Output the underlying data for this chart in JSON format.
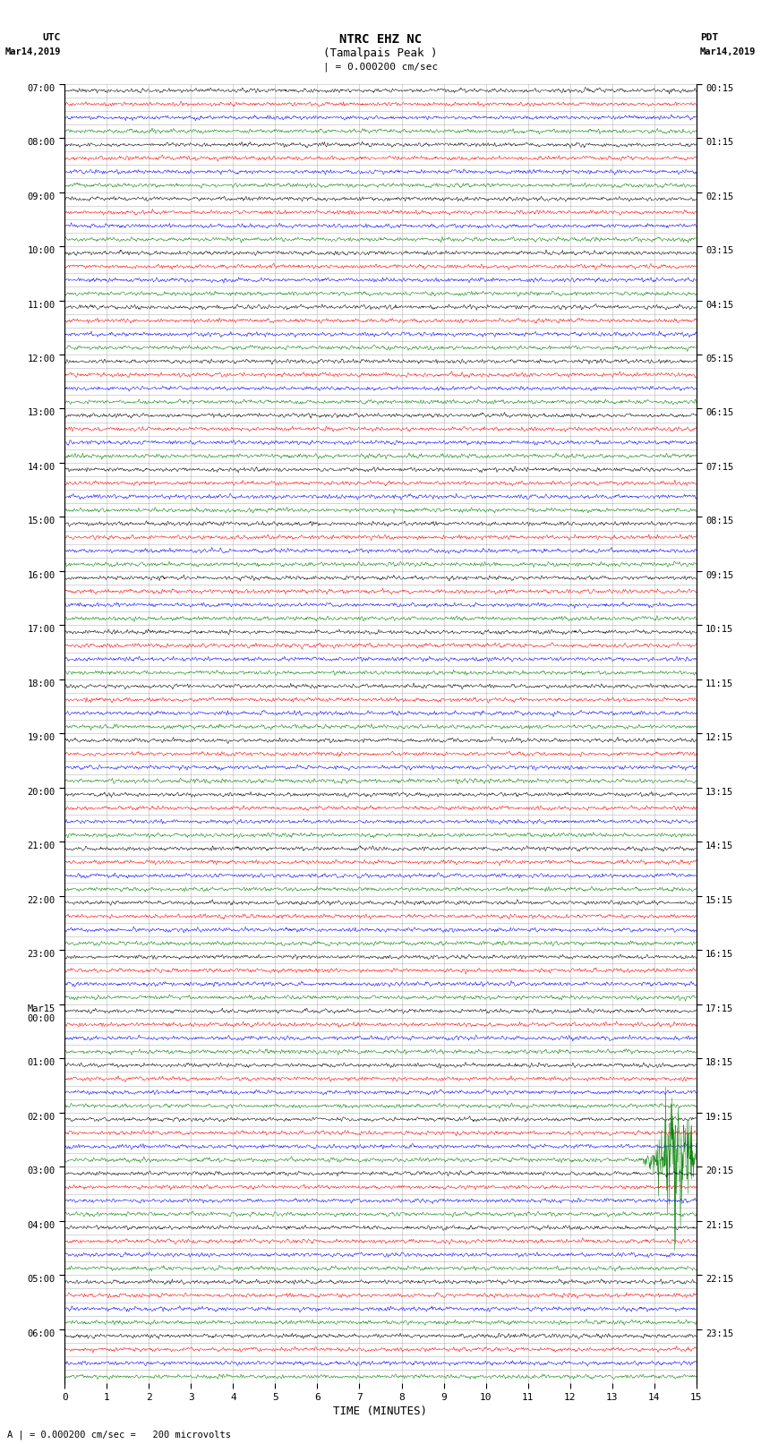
{
  "title_line1": "NTRC EHZ NC",
  "title_line2": "(Tamalpais Peak )",
  "scale_label": "| = 0.000200 cm/sec",
  "footnote": "A | = 0.000200 cm/sec =   200 microvolts",
  "bottom_label": "TIME (MINUTES)",
  "colors": [
    "black",
    "red",
    "blue",
    "green"
  ],
  "x_ticks": [
    0,
    1,
    2,
    3,
    4,
    5,
    6,
    7,
    8,
    9,
    10,
    11,
    12,
    13,
    14,
    15
  ],
  "grid_color": "#999999",
  "num_hours": 24,
  "traces_per_hour": 4,
  "left_utc_labels": [
    "07:00",
    "08:00",
    "09:00",
    "10:00",
    "11:00",
    "12:00",
    "13:00",
    "14:00",
    "15:00",
    "16:00",
    "17:00",
    "18:00",
    "19:00",
    "20:00",
    "21:00",
    "22:00",
    "23:00",
    "Mar15\n00:00",
    "01:00",
    "02:00",
    "03:00",
    "04:00",
    "05:00",
    "06:00"
  ],
  "right_pdt_labels": [
    "00:15",
    "01:15",
    "02:15",
    "03:15",
    "04:15",
    "05:15",
    "06:15",
    "07:15",
    "08:15",
    "09:15",
    "10:15",
    "11:15",
    "12:15",
    "13:15",
    "14:15",
    "15:15",
    "16:15",
    "17:15",
    "18:15",
    "19:15",
    "20:15",
    "21:15",
    "22:15",
    "23:15"
  ]
}
